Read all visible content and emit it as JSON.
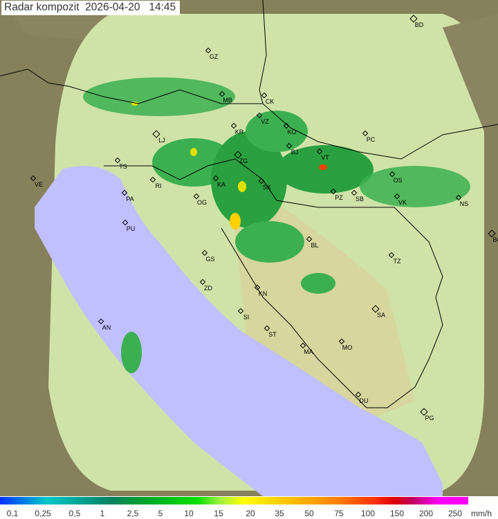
{
  "title": "Radar kompozit  2026-04-20   14:45",
  "colors": {
    "sea": "#c0c0ff",
    "land_in_range": "#cfe3a8",
    "out_of_range": "#8a8460",
    "rain_light": "#3cb050",
    "rain_mid": "#00c800",
    "rain_heavy": "#ffd000"
  },
  "cities": [
    {
      "code": "GZ",
      "capital": false
    },
    {
      "code": "BD",
      "capital": true
    },
    {
      "code": "MB",
      "capital": false
    },
    {
      "code": "CK",
      "capital": false
    },
    {
      "code": "KR",
      "capital": false
    },
    {
      "code": "VZ",
      "capital": false
    },
    {
      "code": "KO",
      "capital": false
    },
    {
      "code": "LJ",
      "capital": true
    },
    {
      "code": "ZG",
      "capital": true
    },
    {
      "code": "BJ",
      "capital": false
    },
    {
      "code": "VT",
      "capital": false
    },
    {
      "code": "PC",
      "capital": false
    },
    {
      "code": "TS",
      "capital": false
    },
    {
      "code": "VE",
      "capital": false
    },
    {
      "code": "RI",
      "capital": false
    },
    {
      "code": "KA",
      "capital": false
    },
    {
      "code": "SK",
      "capital": false
    },
    {
      "code": "OS",
      "capital": false
    },
    {
      "code": "PA",
      "capital": false
    },
    {
      "code": "OG",
      "capital": false
    },
    {
      "code": "PZ",
      "capital": false
    },
    {
      "code": "SB",
      "capital": false
    },
    {
      "code": "VK",
      "capital": false
    },
    {
      "code": "NS",
      "capital": false
    },
    {
      "code": "PU",
      "capital": false
    },
    {
      "code": "BL",
      "capital": false
    },
    {
      "code": "BG",
      "capital": true
    },
    {
      "code": "GS",
      "capital": false
    },
    {
      "code": "TZ",
      "capital": false
    },
    {
      "code": "ZD",
      "capital": false
    },
    {
      "code": "KN",
      "capital": false
    },
    {
      "code": "SA",
      "capital": true
    },
    {
      "code": "SI",
      "capital": false
    },
    {
      "code": "AN",
      "capital": false
    },
    {
      "code": "ST",
      "capital": false
    },
    {
      "code": "MA",
      "capital": false
    },
    {
      "code": "MO",
      "capital": false
    },
    {
      "code": "DU",
      "capital": false
    },
    {
      "code": "PG",
      "capital": true
    }
  ],
  "legend": {
    "labels": [
      "0,1",
      "0,25",
      "0,5",
      "1",
      "2,5",
      "5",
      "10",
      "15",
      "20",
      "35",
      "50",
      "75",
      "100",
      "150",
      "200",
      "250"
    ],
    "unit": "mm/h"
  }
}
